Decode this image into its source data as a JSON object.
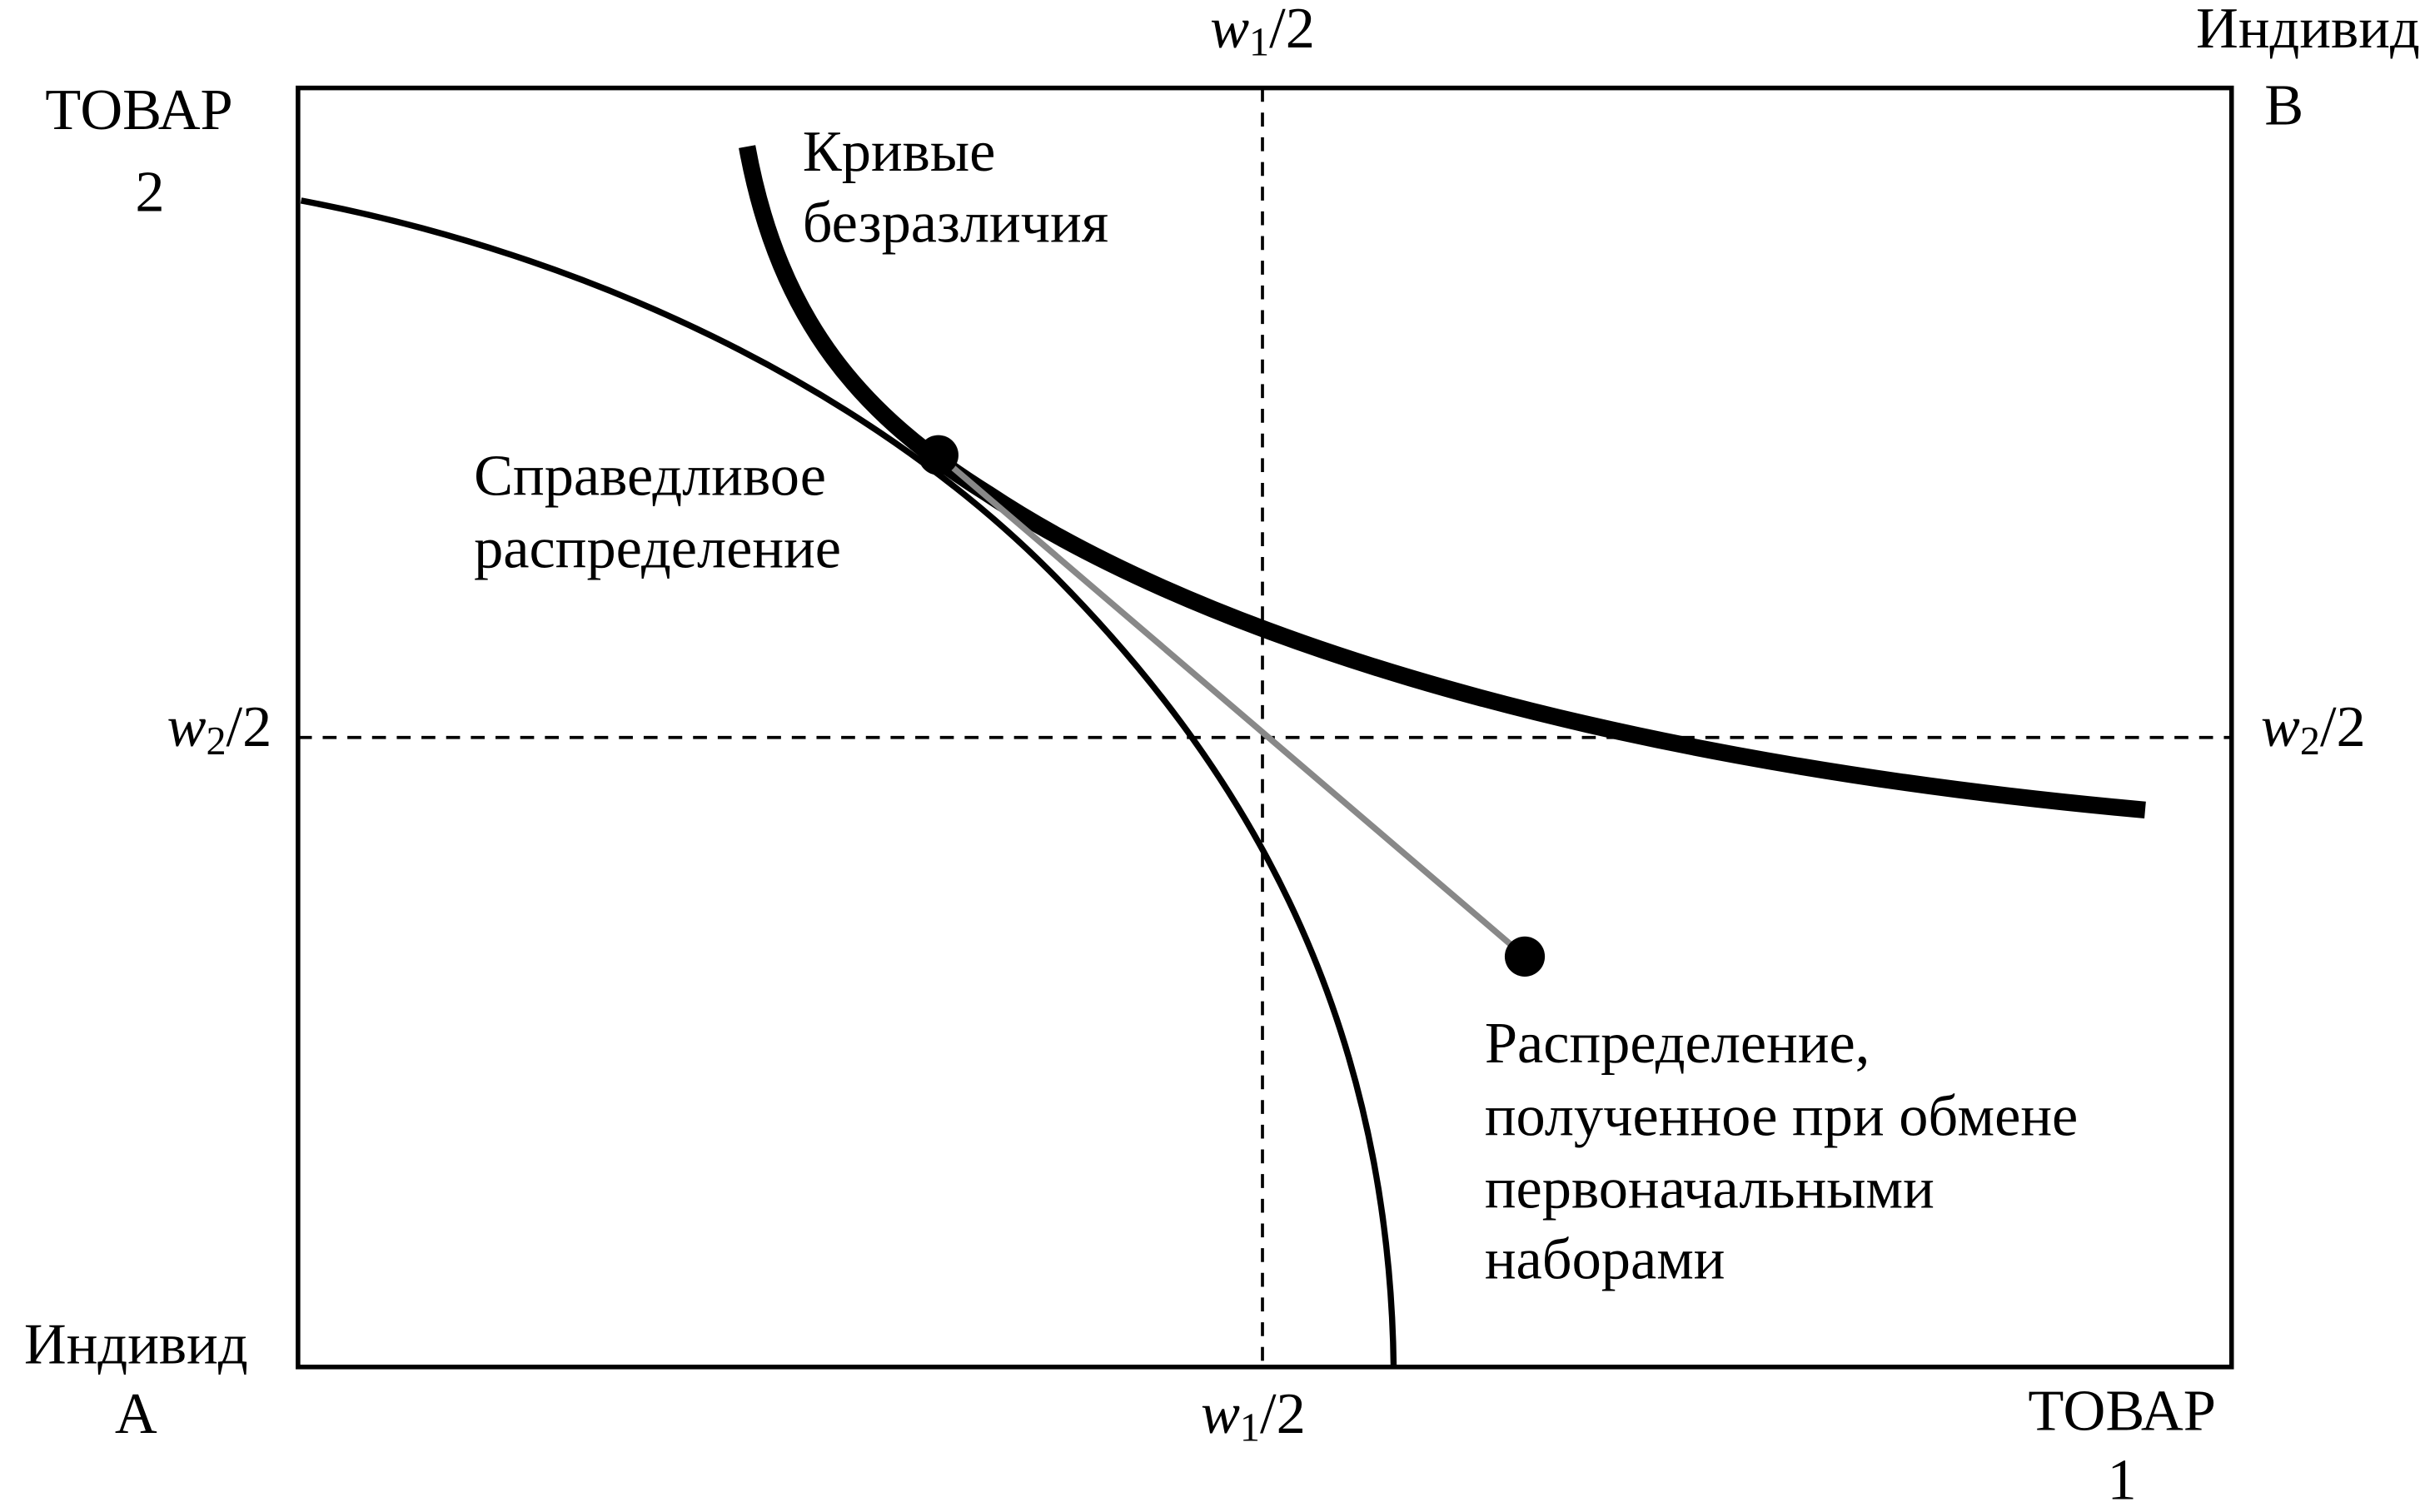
{
  "corner_labels": {
    "top_right": [
      "Индивид",
      "B"
    ],
    "top_left": [
      "ТОВАР",
      "2"
    ],
    "bottom_left": [
      "Индивид",
      "A"
    ],
    "bottom_right": [
      "ТОВАР",
      "1"
    ]
  },
  "axis_marks": {
    "w1_top": [
      "w",
      "1",
      "/2"
    ],
    "w1_bottom": [
      "w",
      "1",
      "/2"
    ],
    "w2_left": [
      "w",
      "2",
      "/2"
    ],
    "w2_right": [
      "w",
      "2",
      "/2"
    ]
  },
  "annotations": {
    "indifference_curves": [
      "Кривые",
      "безразличия"
    ],
    "fair_allocation": [
      "Справедливое",
      "распределение"
    ],
    "trade_allocation": [
      "Распределение,",
      "полученное при обмене",
      "первоначальными",
      "наборами"
    ]
  }
}
